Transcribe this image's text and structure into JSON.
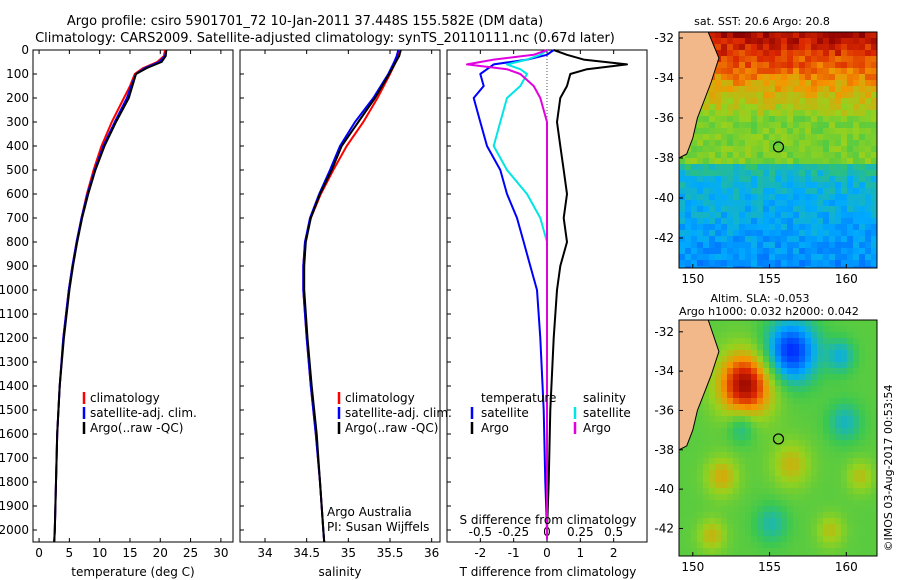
{
  "header": {
    "title_line1": "Argo profile: csiro 5901701_72 10-Jan-2011 37.448S 155.582E (DM data)",
    "title_line2": "Climatology: CARS2009. Satellite-adjusted climatology: synTS_20110111.nc (0.67d later)"
  },
  "colors": {
    "clim": "#ff0000",
    "sat": "#0000ff",
    "argo": "#000000",
    "sal_sat": "#00e5e5",
    "sal_argo": "#e000e0"
  },
  "depth_ticks": [
    "0",
    "100",
    "200",
    "300",
    "400",
    "500",
    "600",
    "700",
    "800",
    "900",
    "1000",
    "1100",
    "1200",
    "1300",
    "1400",
    "1500",
    "1600",
    "1700",
    "1800",
    "1900",
    "2000"
  ],
  "legend": {
    "clim": "climatology",
    "sat": "satellite-adj. clim.",
    "argo": "Argo(..raw -QC)",
    "diff_t_title": "temperature",
    "diff_s_title": "salinity",
    "diff_sat": "satellite",
    "diff_argo": "Argo"
  },
  "credits": {
    "line1": "Argo Australia",
    "line2": "PI: Susan Wijffels"
  },
  "maps": {
    "sst_title": "sat. SST: 20.6  Argo: 20.8",
    "sla_title1": "Altim. SLA: -0.053",
    "sla_title2": "Argo h1000: 0.032 h2000: 0.042",
    "lat_ticks": [
      "-32",
      "-34",
      "-36",
      "-38",
      "-40",
      "-42"
    ],
    "lon_ticks": [
      "150",
      "155",
      "160"
    ],
    "profile_lon": 155.582,
    "profile_lat": -37.448
  },
  "footer": "©IMOS 03-Aug-2017 00:53:54",
  "chart_data": [
    {
      "type": "line",
      "name": "temperature",
      "xlabel": "temperature (deg C)",
      "ylabel": "depth",
      "xlim": [
        -1,
        32
      ],
      "ylim": [
        2050,
        0
      ],
      "xticks": [
        "0",
        "5",
        "10",
        "15",
        "20",
        "25",
        "30"
      ],
      "depth": [
        0,
        25,
        50,
        75,
        100,
        150,
        200,
        300,
        400,
        500,
        600,
        700,
        800,
        900,
        1000,
        1200,
        1400,
        1600,
        1800,
        2000,
        2050
      ],
      "series": [
        {
          "name": "climatology",
          "color": "#ff0000",
          "values": [
            20.8,
            20.6,
            19.5,
            17.2,
            15.8,
            15.0,
            14.0,
            12.0,
            10.3,
            9.0,
            7.9,
            7.0,
            6.2,
            5.5,
            4.9,
            4.0,
            3.4,
            3.0,
            2.8,
            2.6,
            2.5
          ]
        },
        {
          "name": "satellite-adj. clim.",
          "color": "#0000ff",
          "values": [
            21.0,
            20.8,
            19.8,
            17.5,
            16.0,
            15.2,
            14.5,
            12.5,
            10.6,
            9.2,
            8.0,
            7.0,
            6.2,
            5.5,
            4.9,
            4.0,
            3.4,
            3.0,
            2.8,
            2.6,
            2.5
          ]
        },
        {
          "name": "Argo(..raw -QC)",
          "color": "#000000",
          "values": [
            21.0,
            20.9,
            20.2,
            17.8,
            16.0,
            15.4,
            14.8,
            12.7,
            10.8,
            9.3,
            8.1,
            7.1,
            6.3,
            5.6,
            5.0,
            4.1,
            3.4,
            3.0,
            2.8,
            2.6,
            2.5
          ]
        }
      ]
    },
    {
      "type": "line",
      "name": "salinity",
      "xlabel": "salinity",
      "ylabel": "depth",
      "xlim": [
        33.7,
        36.1
      ],
      "ylim": [
        2050,
        0
      ],
      "xticks": [
        "34",
        "34.5",
        "35",
        "35.5",
        "36"
      ],
      "depth": [
        0,
        25,
        50,
        100,
        200,
        300,
        400,
        500,
        600,
        700,
        800,
        900,
        1000,
        1200,
        1400,
        1600,
        1800,
        2000,
        2050
      ],
      "series": [
        {
          "name": "climatology",
          "color": "#ff0000",
          "values": [
            35.62,
            35.6,
            35.57,
            35.5,
            35.35,
            35.18,
            34.98,
            34.82,
            34.67,
            34.55,
            34.48,
            34.46,
            34.46,
            34.5,
            34.55,
            34.61,
            34.66,
            34.7,
            34.71
          ]
        },
        {
          "name": "satellite-adj. clim.",
          "color": "#0000ff",
          "values": [
            35.6,
            35.58,
            35.55,
            35.48,
            35.3,
            35.08,
            34.9,
            34.78,
            34.65,
            34.54,
            34.48,
            34.46,
            34.46,
            34.5,
            34.55,
            34.61,
            34.66,
            34.7,
            34.71
          ]
        },
        {
          "name": "Argo(..raw -QC)",
          "color": "#000000",
          "values": [
            35.63,
            35.61,
            35.57,
            35.49,
            35.32,
            35.12,
            34.92,
            34.8,
            34.66,
            34.55,
            34.49,
            34.47,
            34.47,
            34.51,
            34.56,
            34.62,
            34.66,
            34.7,
            34.71
          ]
        }
      ]
    },
    {
      "type": "line",
      "name": "difference from climatology",
      "xlabel": "T difference from climatology",
      "xlabel_top": "S difference from climatology",
      "xlim": [
        -3,
        3
      ],
      "ylim": [
        2050,
        0
      ],
      "xticks": [
        "-2",
        "-1",
        "0",
        "1",
        "2"
      ],
      "xticks_top": [
        "-0.5",
        "-0.25",
        "0",
        "0.25",
        "0.5"
      ],
      "depth": [
        0,
        20,
        40,
        60,
        80,
        100,
        150,
        200,
        300,
        400,
        500,
        600,
        700,
        800,
        900,
        1000,
        1200,
        1500,
        1800,
        2000,
        2040
      ],
      "series": [
        {
          "name": "temperature satellite",
          "color": "#0000ff",
          "values": [
            0.2,
            0.0,
            -0.6,
            -1.6,
            -1.8,
            -2.0,
            -1.9,
            -2.2,
            -2.0,
            -1.8,
            -1.4,
            -1.2,
            -0.9,
            -0.7,
            -0.5,
            -0.3,
            -0.2,
            -0.1,
            -0.05,
            0.0,
            0.0
          ]
        },
        {
          "name": "temperature Argo",
          "color": "#000000",
          "values": [
            0.2,
            0.6,
            1.1,
            2.4,
            1.2,
            0.7,
            0.6,
            0.4,
            0.3,
            0.4,
            0.5,
            0.6,
            0.5,
            0.6,
            0.4,
            0.3,
            0.2,
            0.1,
            0.05,
            0.0,
            0.0
          ]
        },
        {
          "name": "salinity satellite",
          "color": "#00e5e5",
          "values": [
            0.0,
            -0.05,
            -0.15,
            -0.3,
            -0.2,
            -0.15,
            -0.2,
            -0.3,
            -0.35,
            -0.4,
            -0.3,
            -0.15,
            -0.05,
            0.0,
            0.0,
            0.0,
            0.0,
            0.0,
            0.0,
            0.0,
            0.0
          ]
        },
        {
          "name": "salinity Argo",
          "color": "#e000e0",
          "values": [
            0.0,
            -0.1,
            -0.4,
            -0.6,
            -0.3,
            -0.2,
            -0.1,
            -0.05,
            0.0,
            0.0,
            0.0,
            0.0,
            0.0,
            0.0,
            0.0,
            0.0,
            0.0,
            0.0,
            0.0,
            0.0,
            0.0
          ]
        }
      ]
    }
  ]
}
